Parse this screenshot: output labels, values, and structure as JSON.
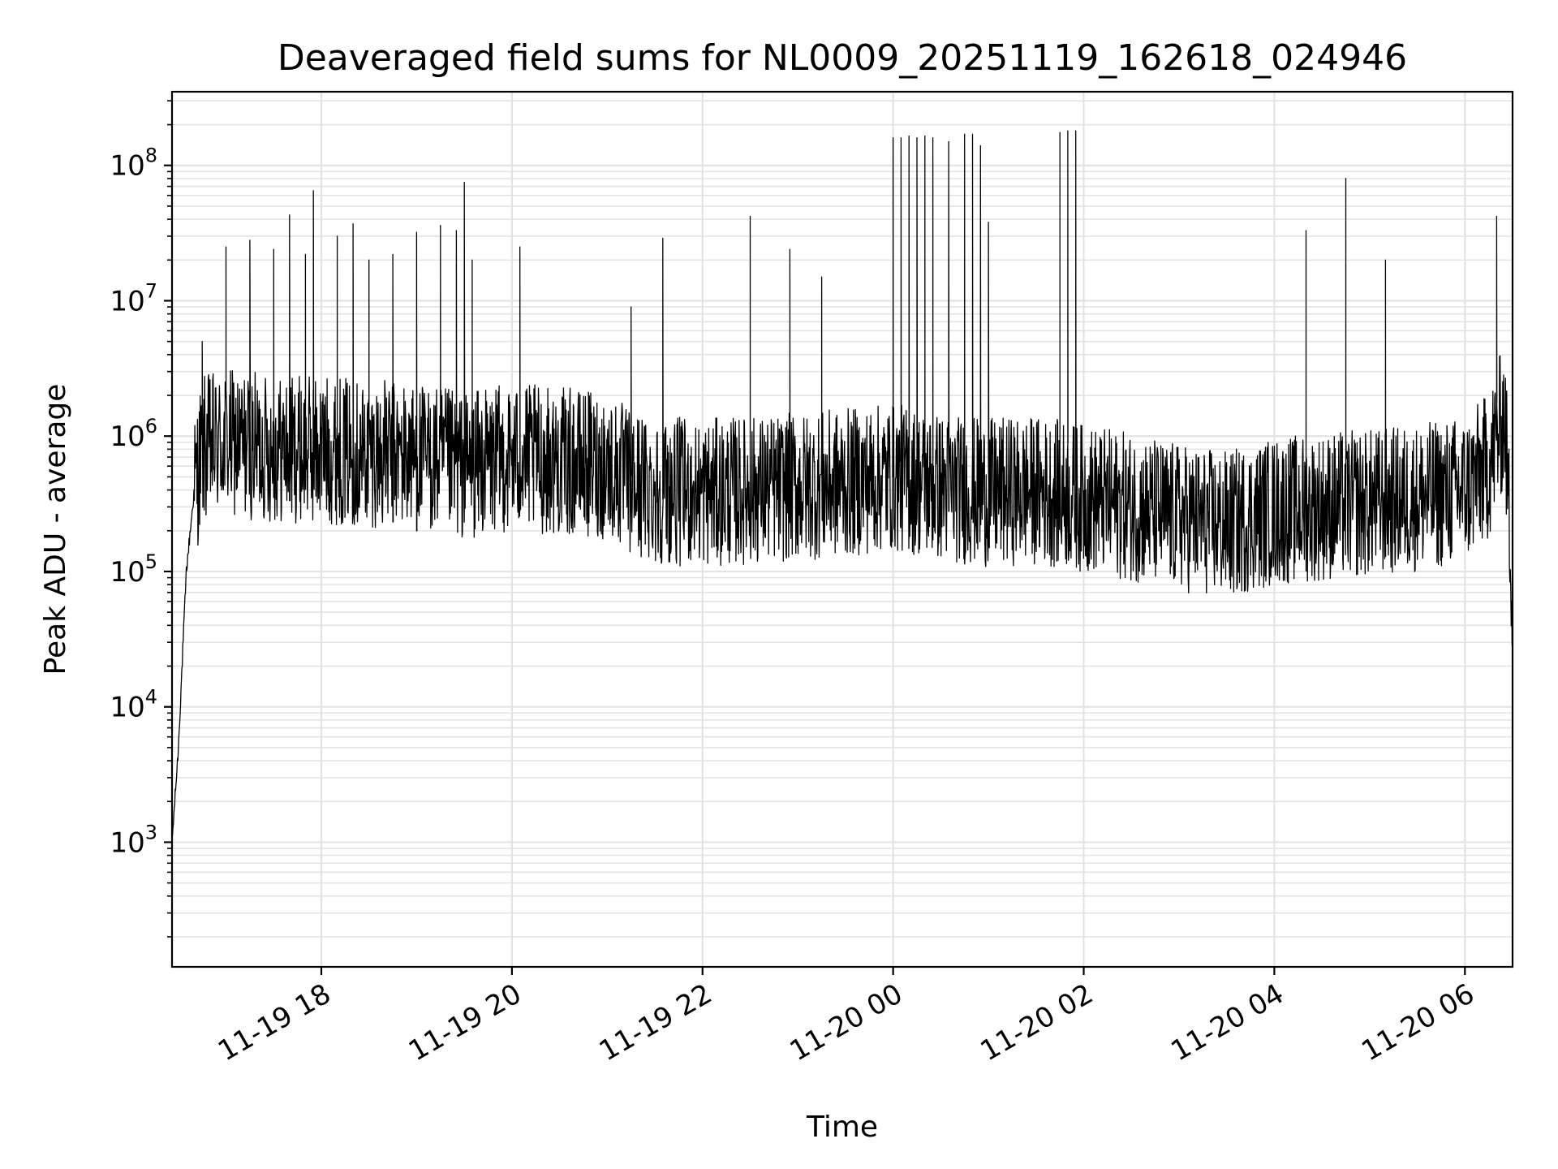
{
  "chart_data": {
    "type": "line",
    "title": "Deaveraged field sums for NL0009_20251119_162618_024946",
    "xlabel": "Time",
    "ylabel": "Peak ADU - average",
    "yscale": "log",
    "grid": true,
    "line_color": "#000000",
    "grid_color": "#e3e3e3",
    "xlim": [
      "2025-11-19 16:26",
      "2025-11-20 06:30"
    ],
    "ylim": [
      120,
      350000000
    ],
    "x_ticks": [
      {
        "value": "2025-11-19 18:00",
        "label": "11-19 18"
      },
      {
        "value": "2025-11-19 20:00",
        "label": "11-19 20"
      },
      {
        "value": "2025-11-19 22:00",
        "label": "11-19 22"
      },
      {
        "value": "2025-11-20 00:00",
        "label": "11-20 00"
      },
      {
        "value": "2025-11-20 02:00",
        "label": "11-20 02"
      },
      {
        "value": "2025-11-20 04:00",
        "label": "11-20 04"
      },
      {
        "value": "2025-11-20 06:00",
        "label": "11-20 06"
      }
    ],
    "y_ticks": [
      {
        "value": 1000,
        "base": "10",
        "exp": "3"
      },
      {
        "value": 10000,
        "base": "10",
        "exp": "4"
      },
      {
        "value": 100000,
        "base": "10",
        "exp": "5"
      },
      {
        "value": 1000000,
        "base": "10",
        "exp": "6"
      },
      {
        "value": 10000000,
        "base": "10",
        "exp": "7"
      },
      {
        "value": 100000000,
        "base": "10",
        "exp": "8"
      }
    ],
    "series": [
      {
        "x": [
          "2025-11-19 16:26",
          "2025-11-19 16:30",
          "2025-11-19 16:35",
          "2025-11-19 16:40",
          "2025-11-19 16:45",
          "2025-11-19 17:00",
          "2025-11-19 17:15",
          "2025-11-19 17:30",
          "2025-11-19 18:00",
          "2025-11-19 18:30",
          "2025-11-19 19:00",
          "2025-11-19 19:30",
          "2025-11-19 20:00",
          "2025-11-19 20:30",
          "2025-11-19 21:00",
          "2025-11-19 21:15",
          "2025-11-19 21:30",
          "2025-11-19 22:00",
          "2025-11-19 22:30",
          "2025-11-19 23:00",
          "2025-11-19 23:30",
          "2025-11-20 00:00",
          "2025-11-20 00:30",
          "2025-11-20 01:00",
          "2025-11-20 01:30",
          "2025-11-20 02:00",
          "2025-11-20 02:30",
          "2025-11-20 03:00",
          "2025-11-20 03:30",
          "2025-11-20 04:00",
          "2025-11-20 04:30",
          "2025-11-20 05:00",
          "2025-11-20 05:30",
          "2025-11-20 06:00",
          "2025-11-20 06:15",
          "2025-11-20 06:25",
          "2025-11-20 06:30"
        ],
        "y": [
          1000,
          5000,
          100000,
          400000,
          800000,
          900000,
          850000,
          800000,
          800000,
          750000,
          700000,
          600000,
          700000,
          650000,
          600000,
          450000,
          400000,
          380000,
          400000,
          420000,
          450000,
          500000,
          420000,
          380000,
          400000,
          350000,
          300000,
          250000,
          220000,
          280000,
          300000,
          320000,
          350000,
          400000,
          600000,
          1500000,
          70000
        ],
        "spikes": [
          {
            "x": "2025-11-19 16:45",
            "y": 5000000
          },
          {
            "x": "2025-11-19 17:00",
            "y": 25000000
          },
          {
            "x": "2025-11-19 17:15",
            "y": 28000000
          },
          {
            "x": "2025-11-19 17:30",
            "y": 24000000
          },
          {
            "x": "2025-11-19 17:40",
            "y": 43000000
          },
          {
            "x": "2025-11-19 17:50",
            "y": 22000000
          },
          {
            "x": "2025-11-19 17:55",
            "y": 65000000
          },
          {
            "x": "2025-11-19 18:10",
            "y": 30000000
          },
          {
            "x": "2025-11-19 18:20",
            "y": 37000000
          },
          {
            "x": "2025-11-19 18:30",
            "y": 20000000
          },
          {
            "x": "2025-11-19 18:45",
            "y": 22000000
          },
          {
            "x": "2025-11-19 19:00",
            "y": 32000000
          },
          {
            "x": "2025-11-19 19:15",
            "y": 36000000
          },
          {
            "x": "2025-11-19 19:25",
            "y": 33000000
          },
          {
            "x": "2025-11-19 19:30",
            "y": 75000000
          },
          {
            "x": "2025-11-19 19:35",
            "y": 20000000
          },
          {
            "x": "2025-11-19 20:05",
            "y": 25000000
          },
          {
            "x": "2025-11-19 21:15",
            "y": 9000000
          },
          {
            "x": "2025-11-19 21:35",
            "y": 29000000
          },
          {
            "x": "2025-11-19 22:30",
            "y": 42000000
          },
          {
            "x": "2025-11-19 22:55",
            "y": 24000000
          },
          {
            "x": "2025-11-19 23:15",
            "y": 15000000
          },
          {
            "x": "2025-11-20 00:00",
            "y": 160000000
          },
          {
            "x": "2025-11-20 00:05",
            "y": 160000000
          },
          {
            "x": "2025-11-20 00:10",
            "y": 165000000
          },
          {
            "x": "2025-11-20 00:15",
            "y": 160000000
          },
          {
            "x": "2025-11-20 00:20",
            "y": 165000000
          },
          {
            "x": "2025-11-20 00:25",
            "y": 160000000
          },
          {
            "x": "2025-11-20 00:35",
            "y": 150000000
          },
          {
            "x": "2025-11-20 00:45",
            "y": 170000000
          },
          {
            "x": "2025-11-20 00:50",
            "y": 170000000
          },
          {
            "x": "2025-11-20 00:55",
            "y": 140000000
          },
          {
            "x": "2025-11-20 01:00",
            "y": 38000000
          },
          {
            "x": "2025-11-20 01:45",
            "y": 175000000
          },
          {
            "x": "2025-11-20 01:50",
            "y": 180000000
          },
          {
            "x": "2025-11-20 01:55",
            "y": 180000000
          },
          {
            "x": "2025-11-20 04:20",
            "y": 33000000
          },
          {
            "x": "2025-11-20 04:45",
            "y": 80000000
          },
          {
            "x": "2025-11-20 05:10",
            "y": 20000000
          },
          {
            "x": "2025-11-20 06:20",
            "y": 42000000
          }
        ]
      }
    ]
  }
}
